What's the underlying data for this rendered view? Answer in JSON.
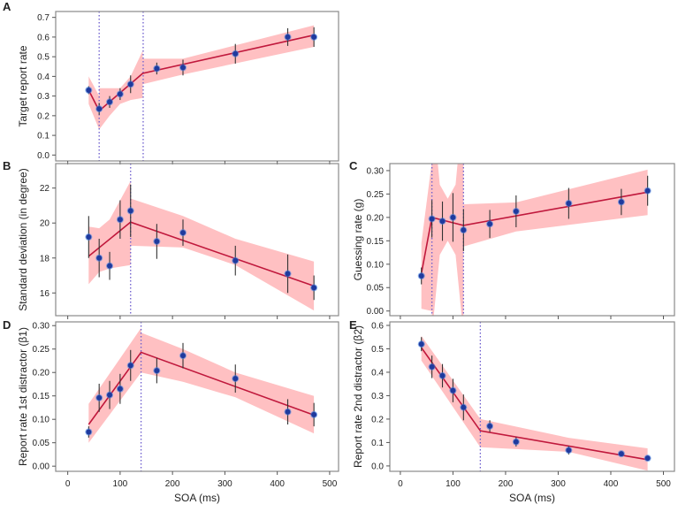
{
  "chart_data": [
    {
      "panel": "A",
      "type": "line",
      "ylabel": "Target report rate",
      "xlabel": "",
      "xlim": [
        -23,
        517
      ],
      "ylim": [
        -0.03,
        0.73
      ],
      "yticks": [
        0.0,
        0.1,
        0.2,
        0.3,
        0.4,
        0.5,
        0.6,
        0.7
      ],
      "ytick_labels": [
        "0.0",
        "0.1",
        "0.2",
        "0.3",
        "0.4",
        "0.5",
        "0.6",
        "0.7"
      ],
      "xticks": [
        0,
        100,
        200,
        300,
        400,
        500
      ],
      "xtick_labels": [],
      "x": [
        40,
        60,
        80,
        100,
        120,
        170,
        220,
        320,
        420,
        470
      ],
      "y": [
        0.33,
        0.235,
        0.27,
        0.31,
        0.36,
        0.44,
        0.445,
        0.515,
        0.6,
        0.6
      ],
      "err": [
        0.02,
        0.03,
        0.03,
        0.03,
        0.045,
        0.03,
        0.04,
        0.05,
        0.045,
        0.05
      ],
      "fit": {
        "x": [
          40,
          60,
          143,
          470
        ],
        "y": [
          0.33,
          0.225,
          0.415,
          0.61
        ]
      },
      "band": [
        {
          "x": [
            40,
            60
          ],
          "lower": [
            0.26,
            0.13
          ],
          "upper": [
            0.4,
            0.3
          ]
        },
        {
          "x": [
            60,
            80,
            100,
            120,
            143
          ],
          "lower": [
            0.13,
            0.2,
            0.26,
            0.28,
            0.29
          ],
          "upper": [
            0.34,
            0.34,
            0.34,
            0.4,
            0.53
          ]
        },
        {
          "x": [
            143,
            220,
            470
          ],
          "lower": [
            0.36,
            0.41,
            0.55
          ],
          "upper": [
            0.49,
            0.49,
            0.66
          ]
        }
      ],
      "breakpoints": [
        60,
        144
      ]
    },
    {
      "panel": "B",
      "type": "line",
      "ylabel": "Standard deviation (in degree)",
      "xlabel": "",
      "xlim": [
        -23,
        517
      ],
      "ylim": [
        14.7,
        23.4
      ],
      "yticks": [
        16,
        18,
        20,
        22
      ],
      "ytick_labels": [
        "16",
        "18",
        "20",
        "22"
      ],
      "xticks": [
        0,
        100,
        200,
        300,
        400,
        500
      ],
      "xtick_labels": [],
      "x": [
        40,
        60,
        80,
        100,
        120,
        170,
        220,
        320,
        420,
        470
      ],
      "y": [
        19.2,
        18.0,
        17.55,
        20.2,
        20.7,
        18.95,
        19.45,
        17.85,
        17.1,
        16.3
      ],
      "err": [
        1.2,
        1.1,
        0.8,
        1.1,
        1.5,
        1.0,
        0.75,
        0.85,
        1.1,
        0.7
      ],
      "fit": {
        "x": [
          40,
          120,
          470
        ],
        "y": [
          18.1,
          20.05,
          16.4
        ]
      },
      "band": [
        {
          "x": [
            40,
            60,
            80,
            100,
            120
          ],
          "lower": [
            16.5,
            17.2,
            17.4,
            17.5,
            17.6
          ],
          "upper": [
            19.8,
            19.7,
            20.2,
            21.3,
            22.4
          ]
        },
        {
          "x": [
            120,
            220,
            320,
            470
          ],
          "lower": [
            18.7,
            18.6,
            17.6,
            15.0
          ],
          "upper": [
            21.4,
            20.4,
            19.1,
            17.8
          ]
        }
      ],
      "breakpoints": [
        120
      ]
    },
    {
      "panel": "C",
      "type": "line",
      "ylabel": "Guessing rate (g)",
      "xlabel": "",
      "xlim": [
        -20,
        521
      ],
      "ylim": [
        -0.01,
        0.315
      ],
      "yticks": [
        0,
        0.05,
        0.1,
        0.15,
        0.2,
        0.25,
        0.3
      ],
      "ytick_labels": [
        "0.00",
        "0.05",
        "0.10",
        "0.15",
        "0.20",
        "0.25",
        "0.30"
      ],
      "xticks": [
        0,
        100,
        200,
        300,
        400,
        500
      ],
      "xtick_labels": [],
      "x": [
        40,
        60,
        80,
        100,
        120,
        170,
        220,
        320,
        420,
        470
      ],
      "y": [
        0.075,
        0.197,
        0.192,
        0.2,
        0.173,
        0.186,
        0.213,
        0.23,
        0.233,
        0.257
      ],
      "err": [
        0.018,
        0.04,
        0.042,
        0.052,
        0.045,
        0.03,
        0.034,
        0.033,
        0.028,
        0.032
      ],
      "fit": {
        "x": [
          40,
          60,
          120,
          470
        ],
        "y": [
          0.08,
          0.2,
          0.183,
          0.254
        ]
      },
      "band": [
        {
          "x": [
            40,
            60
          ],
          "lower": [
            0.005,
            0.0
          ],
          "upper": [
            0.145,
            0.32
          ]
        },
        {
          "x": [
            60,
            75,
            90,
            105,
            120
          ],
          "lower": [
            -0.05,
            0.12,
            0.15,
            0.12,
            -0.05
          ],
          "upper": [
            0.45,
            0.27,
            0.24,
            0.27,
            0.45
          ]
        },
        {
          "x": [
            120,
            220,
            470
          ],
          "lower": [
            0.138,
            0.17,
            0.205
          ],
          "upper": [
            0.228,
            0.232,
            0.302
          ]
        }
      ],
      "breakpoints": [
        60,
        120
      ]
    },
    {
      "panel": "D",
      "type": "line",
      "ylabel": "Report rate 1st distractor (β1)",
      "xlabel": "SOA (ms)",
      "xlim": [
        -23,
        517
      ],
      "ylim": [
        -0.011,
        0.308
      ],
      "yticks": [
        0,
        0.05,
        0.1,
        0.15,
        0.2,
        0.25,
        0.3
      ],
      "ytick_labels": [
        "0.00",
        "0.05",
        "0.10",
        "0.15",
        "0.20",
        "0.25",
        "0.30"
      ],
      "xticks": [
        0,
        100,
        200,
        300,
        400,
        500
      ],
      "xtick_labels": [
        "0",
        "100",
        "200",
        "300",
        "400",
        "500"
      ],
      "x": [
        40,
        60,
        80,
        100,
        120,
        170,
        220,
        320,
        420,
        470
      ],
      "y": [
        0.073,
        0.146,
        0.152,
        0.165,
        0.215,
        0.204,
        0.236,
        0.187,
        0.116,
        0.11
      ],
      "err": [
        0.012,
        0.03,
        0.03,
        0.032,
        0.033,
        0.027,
        0.027,
        0.03,
        0.027,
        0.025
      ],
      "fit": {
        "x": [
          40,
          140,
          470
        ],
        "y": [
          0.089,
          0.243,
          0.109
        ]
      },
      "band": [
        {
          "x": [
            40,
            140
          ],
          "lower": [
            0.05,
            0.2
          ],
          "upper": [
            0.133,
            0.295
          ]
        },
        {
          "x": [
            140,
            220,
            320,
            470
          ],
          "lower": [
            0.2,
            0.18,
            0.147,
            0.07
          ],
          "upper": [
            0.285,
            0.25,
            0.2,
            0.15
          ]
        }
      ],
      "breakpoints": [
        140
      ]
    },
    {
      "panel": "E",
      "type": "line",
      "ylabel": "Report rate 2nd distractor (β2)",
      "xlabel": "SOA (ms)",
      "xlim": [
        -20,
        521
      ],
      "ylim": [
        -0.023,
        0.615
      ],
      "yticks": [
        0,
        0.1,
        0.2,
        0.3,
        0.4,
        0.5,
        0.6
      ],
      "ytick_labels": [
        "0.0",
        "0.1",
        "0.2",
        "0.3",
        "0.4",
        "0.5",
        "0.6"
      ],
      "xticks": [
        0,
        100,
        200,
        300,
        400,
        500
      ],
      "xtick_labels": [
        "0",
        "100",
        "200",
        "300",
        "400",
        "500"
      ],
      "x": [
        40,
        60,
        80,
        100,
        120,
        170,
        220,
        320,
        420,
        470
      ],
      "y": [
        0.52,
        0.423,
        0.385,
        0.322,
        0.25,
        0.17,
        0.103,
        0.067,
        0.052,
        0.033
      ],
      "err": [
        0.03,
        0.048,
        0.05,
        0.05,
        0.055,
        0.025,
        0.02,
        0.018,
        0.01,
        0.01
      ],
      "fit": {
        "x": [
          40,
          152,
          470
        ],
        "y": [
          0.505,
          0.15,
          0.027
        ]
      },
      "band": [
        {
          "x": [
            40,
            152
          ],
          "lower": [
            0.45,
            0.08
          ],
          "upper": [
            0.555,
            0.2
          ]
        },
        {
          "x": [
            152,
            320,
            470
          ],
          "lower": [
            0.08,
            0.06,
            -0.02
          ],
          "upper": [
            0.2,
            0.12,
            0.075
          ]
        }
      ],
      "breakpoints": [
        152
      ]
    }
  ],
  "colors": {
    "band": "#ffc0c2",
    "fit": "#c0183c",
    "point": "#1f3a9e",
    "point_glow": "#3f7fe0",
    "errorbar": "#333333",
    "breakpoint": "#6a5acd",
    "frame": "#8a8a8a"
  }
}
